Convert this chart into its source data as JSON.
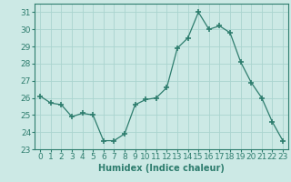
{
  "x": [
    0,
    1,
    2,
    3,
    4,
    5,
    6,
    7,
    8,
    9,
    10,
    11,
    12,
    13,
    14,
    15,
    16,
    17,
    18,
    19,
    20,
    21,
    22,
    23
  ],
  "y": [
    26.1,
    25.7,
    25.6,
    24.9,
    25.1,
    25.0,
    23.5,
    23.5,
    23.9,
    25.6,
    25.9,
    26.0,
    26.6,
    28.9,
    29.5,
    31.0,
    30.0,
    30.2,
    29.8,
    28.1,
    26.9,
    26.0,
    24.6,
    23.5
  ],
  "line_color": "#2e7d6e",
  "marker": "+",
  "marker_size": 4,
  "bg_color": "#cce9e5",
  "grid_color": "#aad4cf",
  "xlabel": "Humidex (Indice chaleur)",
  "ylim": [
    23,
    31.5
  ],
  "xlim": [
    -0.5,
    23.5
  ],
  "yticks": [
    23,
    24,
    25,
    26,
    27,
    28,
    29,
    30,
    31
  ],
  "xticks": [
    0,
    1,
    2,
    3,
    4,
    5,
    6,
    7,
    8,
    9,
    10,
    11,
    12,
    13,
    14,
    15,
    16,
    17,
    18,
    19,
    20,
    21,
    22,
    23
  ],
  "xlabel_fontsize": 7,
  "tick_fontsize": 6.5
}
